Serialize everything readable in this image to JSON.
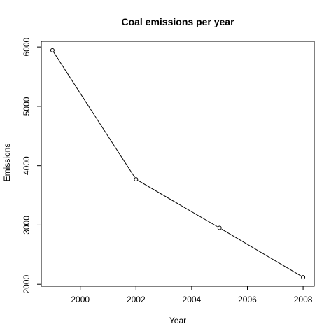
{
  "chart_data": {
    "type": "line",
    "title": "Coal emissions per year",
    "xlabel": "Year",
    "ylabel": "Emissions",
    "x": [
      1999,
      2002,
      2005,
      2008
    ],
    "series": [
      {
        "values": [
          5944,
          3771,
          2952,
          2119
        ]
      }
    ],
    "xlim": [
      1998.6,
      2008.4
    ],
    "ylim": [
      1967,
      6096
    ],
    "xticks": [
      2000,
      2002,
      2004,
      2006,
      2008
    ],
    "yticks": [
      2000,
      3000,
      4000,
      5000,
      6000
    ],
    "grid": false,
    "marker": "open-circle",
    "line_color": "#000000"
  }
}
